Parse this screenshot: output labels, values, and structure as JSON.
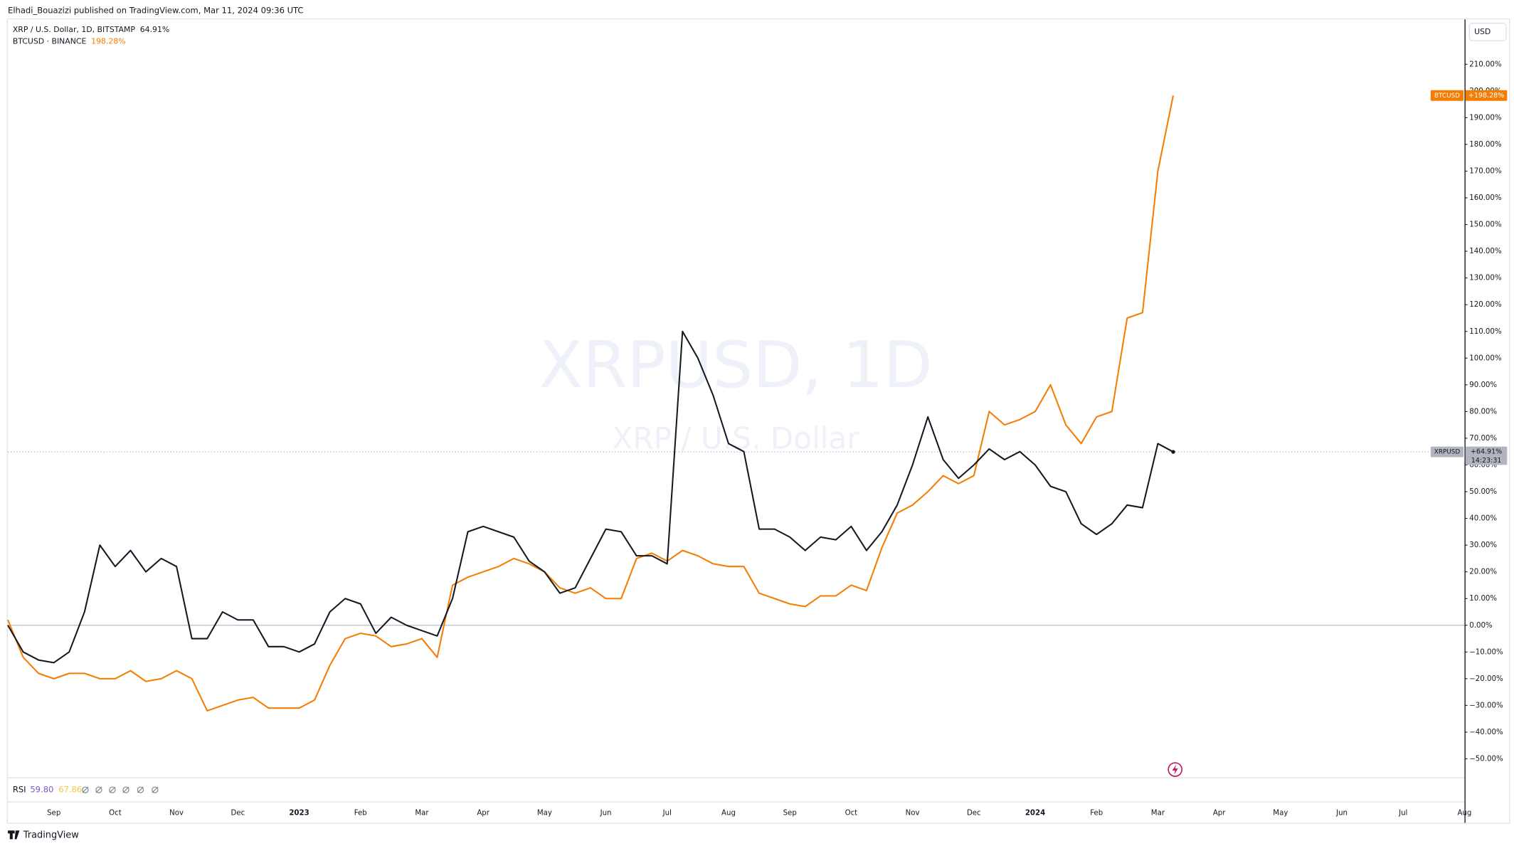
{
  "header": {
    "publisher": "Elhadi_Bouazizi published on TradingView.com, Mar 11, 2024 09:36 UTC"
  },
  "chart_data": {
    "type": "line",
    "watermark": "XRPUSD, 1D",
    "watermark_subtitle": "XRP / U.S. Dollar",
    "currency": "USD",
    "categories": [
      null,
      null,
      null,
      "Sep",
      null,
      null,
      null,
      "Oct",
      null,
      null,
      null,
      "Nov",
      null,
      null,
      null,
      "Dec",
      null,
      null,
      null,
      "2023",
      null,
      null,
      null,
      "Feb",
      null,
      null,
      null,
      "Mar",
      null,
      null,
      null,
      "Apr",
      null,
      null,
      null,
      "May",
      null,
      null,
      null,
      "Jun",
      null,
      null,
      null,
      "Jul",
      null,
      null,
      null,
      "Aug",
      null,
      null,
      null,
      "Sep",
      null,
      null,
      null,
      "Oct",
      null,
      null,
      null,
      "Nov",
      null,
      null,
      null,
      "Dec",
      null,
      null,
      null,
      "2024",
      null,
      null,
      null,
      "Feb",
      null,
      null,
      null,
      "Mar",
      null,
      null,
      null,
      "Apr",
      null,
      null,
      null,
      "May",
      null,
      null,
      null,
      "Jun",
      null,
      null,
      null,
      "Jul",
      null,
      null,
      null,
      "Aug"
    ],
    "series": [
      {
        "name": "XRP / U.S. Dollar, 1D, BITSTAMP",
        "legend_value": "64.91%",
        "tag_name": "XRPUSD",
        "tag_value": "+64.91%",
        "countdown": "14:23:31",
        "color": "#131722",
        "tag_color": "#b2b5be",
        "values": [
          0,
          -10,
          -13,
          -14,
          -10,
          5,
          30,
          22,
          28,
          20,
          25,
          22,
          -5,
          -5,
          5,
          2,
          2,
          -8,
          -8,
          -10,
          -7,
          5,
          10,
          8,
          -3,
          3,
          0,
          -2,
          -4,
          10,
          35,
          37,
          35,
          33,
          24,
          20,
          12,
          14,
          25,
          36,
          35,
          26,
          26,
          23,
          110,
          100,
          86,
          68,
          65,
          36,
          36,
          33,
          28,
          33,
          32,
          37,
          28,
          35,
          45,
          60,
          78,
          62,
          55,
          60,
          66,
          62,
          65,
          60,
          52,
          50,
          38,
          34,
          38,
          45,
          44,
          68,
          64.91,
          null,
          null,
          null,
          null,
          null,
          null,
          null,
          null,
          null,
          null,
          null,
          null,
          null,
          null,
          null,
          null,
          null,
          null,
          null
        ]
      },
      {
        "name": "BTCUSD · BINANCE",
        "legend_value": "198.28%",
        "tag_name": "BTCUSD",
        "tag_value": "+198.28%",
        "color": "#f57c00",
        "tag_color": "#f57c00",
        "values": [
          2,
          -12,
          -18,
          -20,
          -18,
          -18,
          -20,
          -20,
          -17,
          -21,
          -20,
          -17,
          -20,
          -32,
          -30,
          -28,
          -27,
          -31,
          -31,
          -31,
          -28,
          -15,
          -5,
          -3,
          -4,
          -8,
          -7,
          -5,
          -12,
          15,
          18,
          20,
          22,
          25,
          23,
          20,
          14,
          12,
          14,
          10,
          10,
          25,
          27,
          24,
          28,
          26,
          23,
          22,
          22,
          12,
          10,
          8,
          7,
          11,
          11,
          15,
          13,
          29,
          42,
          45,
          50,
          56,
          53,
          56,
          80,
          75,
          77,
          80,
          90,
          75,
          68,
          78,
          80,
          115,
          117,
          170,
          198.28,
          null,
          null,
          null,
          null,
          null,
          null,
          null,
          null,
          null,
          null,
          null,
          null,
          null,
          null,
          null,
          null,
          null,
          null,
          null
        ]
      }
    ],
    "ylim": [
      -56.9,
      226.8
    ],
    "yticks": [
      {
        "value": 210,
        "label": "210.00%"
      },
      {
        "value": 200,
        "label": "200.00%"
      },
      {
        "value": 190,
        "label": "190.00%"
      },
      {
        "value": 180,
        "label": "180.00%"
      },
      {
        "value": 170,
        "label": "170.00%"
      },
      {
        "value": 160,
        "label": "160.00%"
      },
      {
        "value": 150,
        "label": "150.00%"
      },
      {
        "value": 140,
        "label": "140.00%"
      },
      {
        "value": 130,
        "label": "130.00%"
      },
      {
        "value": 120,
        "label": "120.00%"
      },
      {
        "value": 110,
        "label": "110.00%"
      },
      {
        "value": 100,
        "label": "100.00%"
      },
      {
        "value": 90,
        "label": "90.00%"
      },
      {
        "value": 80,
        "label": "80.00%"
      },
      {
        "value": 70,
        "label": "70.00%"
      },
      {
        "value": 60,
        "label": "60.00%"
      },
      {
        "value": 50,
        "label": "50.00%"
      },
      {
        "value": 40,
        "label": "40.00%"
      },
      {
        "value": 30,
        "label": "30.00%"
      },
      {
        "value": 20,
        "label": "20.00%"
      },
      {
        "value": 10,
        "label": "10.00%"
      },
      {
        "value": 0,
        "label": "0.00%"
      },
      {
        "value": -10,
        "label": "−10.00%"
      },
      {
        "value": -20,
        "label": "−20.00%"
      },
      {
        "value": -30,
        "label": "−30.00%"
      },
      {
        "value": -40,
        "label": "−40.00%"
      },
      {
        "value": -50,
        "label": "−50.00%"
      }
    ],
    "zero_line": true
  },
  "indicator": {
    "name": "RSI",
    "readings": [
      "59.80",
      "67.86"
    ],
    "colors": [
      "#7e57c2",
      "#f5c542"
    ]
  },
  "footer": {
    "brand": "TradingView"
  }
}
